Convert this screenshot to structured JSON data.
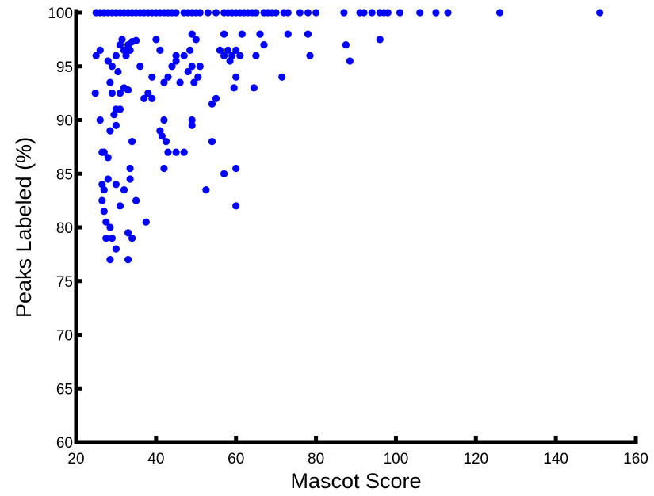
{
  "chart_data": {
    "type": "scatter",
    "xlabel": "Mascot Score",
    "ylabel": "Peaks Labeled (%)",
    "xlim": [
      20,
      160
    ],
    "ylim": [
      60,
      100
    ],
    "xticks": [
      20,
      40,
      60,
      80,
      100,
      120,
      140,
      160
    ],
    "yticks": [
      60,
      65,
      70,
      75,
      80,
      85,
      90,
      95,
      100
    ],
    "grid": false,
    "legend": "none",
    "marker_color": "#0000ff",
    "series": [
      {
        "points": [
          [
            25,
            100
          ],
          [
            26,
            100
          ],
          [
            27,
            100
          ],
          [
            28,
            100
          ],
          [
            29,
            100
          ],
          [
            30,
            100
          ],
          [
            31,
            100
          ],
          [
            32,
            100
          ],
          [
            33,
            100
          ],
          [
            34,
            100
          ],
          [
            35,
            100
          ],
          [
            36,
            100
          ],
          [
            37,
            100
          ],
          [
            38,
            100
          ],
          [
            39,
            100
          ],
          [
            40,
            100
          ],
          [
            41,
            100
          ],
          [
            42,
            100
          ],
          [
            43,
            100
          ],
          [
            44,
            100
          ],
          [
            45,
            100
          ],
          [
            47,
            100
          ],
          [
            48,
            100
          ],
          [
            49,
            100
          ],
          [
            50,
            100
          ],
          [
            51,
            100
          ],
          [
            53,
            100
          ],
          [
            55,
            100
          ],
          [
            57,
            100
          ],
          [
            58,
            100
          ],
          [
            59,
            100
          ],
          [
            60,
            100
          ],
          [
            61,
            100
          ],
          [
            62,
            100
          ],
          [
            63,
            100
          ],
          [
            64,
            100
          ],
          [
            65,
            100
          ],
          [
            67,
            100
          ],
          [
            68,
            100
          ],
          [
            69,
            100
          ],
          [
            70,
            100
          ],
          [
            72,
            100
          ],
          [
            73,
            100
          ],
          [
            76,
            100
          ],
          [
            78,
            100
          ],
          [
            80,
            100
          ],
          [
            87,
            100
          ],
          [
            91,
            100
          ],
          [
            92,
            100
          ],
          [
            94,
            100
          ],
          [
            96,
            100
          ],
          [
            97,
            100
          ],
          [
            98,
            100
          ],
          [
            101,
            100
          ],
          [
            106,
            100
          ],
          [
            110,
            100
          ],
          [
            113,
            100
          ],
          [
            126,
            100
          ],
          [
            151,
            100
          ],
          [
            26,
            96.5
          ],
          [
            25,
            96
          ],
          [
            24.8,
            92.5
          ],
          [
            26,
            90
          ],
          [
            28,
            95.5
          ],
          [
            28.5,
            93.5
          ],
          [
            29,
            95
          ],
          [
            30,
            96
          ],
          [
            30.5,
            94.5
          ],
          [
            31,
            97
          ],
          [
            31.5,
            97.5
          ],
          [
            32,
            96.5
          ],
          [
            32.5,
            96
          ],
          [
            33,
            97
          ],
          [
            33.5,
            96.5
          ],
          [
            34,
            97.3
          ],
          [
            35,
            97.4
          ],
          [
            36,
            95
          ],
          [
            29,
            92.5
          ],
          [
            30,
            91
          ],
          [
            31,
            92.5
          ],
          [
            32,
            93
          ],
          [
            33,
            92.8
          ],
          [
            37,
            92
          ],
          [
            38,
            92.5
          ],
          [
            39,
            92
          ],
          [
            39,
            94
          ],
          [
            40,
            97.5
          ],
          [
            41,
            96.5
          ],
          [
            42,
            93.5
          ],
          [
            43,
            94
          ],
          [
            44,
            95
          ],
          [
            45,
            95.5
          ],
          [
            45,
            96
          ],
          [
            46,
            93.5
          ],
          [
            47,
            96
          ],
          [
            48,
            94.5
          ],
          [
            48.5,
            96.5
          ],
          [
            49,
            98
          ],
          [
            49,
            95
          ],
          [
            49.5,
            93.5
          ],
          [
            50,
            97.5
          ],
          [
            50.5,
            94
          ],
          [
            51,
            95
          ],
          [
            55,
            92
          ],
          [
            54,
            91.5
          ],
          [
            56,
            96.5
          ],
          [
            57,
            98
          ],
          [
            57,
            96
          ],
          [
            58,
            96.5
          ],
          [
            58.5,
            95.5
          ],
          [
            59,
            96
          ],
          [
            60,
            94
          ],
          [
            60,
            96.5
          ],
          [
            61,
            96
          ],
          [
            61.5,
            98
          ],
          [
            59.5,
            93
          ],
          [
            64.5,
            93
          ],
          [
            65,
            96
          ],
          [
            66,
            98
          ],
          [
            67,
            97
          ],
          [
            71.5,
            94
          ],
          [
            73,
            98
          ],
          [
            78,
            98
          ],
          [
            78.5,
            96
          ],
          [
            87.5,
            97
          ],
          [
            88.5,
            95.5
          ],
          [
            96,
            97.5
          ],
          [
            29.5,
            90.5
          ],
          [
            30,
            89.5
          ],
          [
            31,
            91
          ],
          [
            28.5,
            89
          ],
          [
            26.5,
            87
          ],
          [
            27,
            87
          ],
          [
            28,
            86.5
          ],
          [
            34,
            88
          ],
          [
            41,
            89
          ],
          [
            42,
            90
          ],
          [
            42.5,
            88
          ],
          [
            41.5,
            88.5
          ],
          [
            43,
            87
          ],
          [
            45,
            87
          ],
          [
            47,
            87
          ],
          [
            49,
            89.5
          ],
          [
            49,
            90
          ],
          [
            54,
            88
          ],
          [
            26.5,
            84
          ],
          [
            27,
            83.5
          ],
          [
            26.5,
            82.5
          ],
          [
            27,
            81.5
          ],
          [
            28,
            84.5
          ],
          [
            30,
            84
          ],
          [
            31,
            82
          ],
          [
            32,
            83.5
          ],
          [
            33.5,
            84.5
          ],
          [
            33.5,
            85.5
          ],
          [
            35,
            82.5
          ],
          [
            42,
            85.5
          ],
          [
            52.5,
            83.5
          ],
          [
            57,
            85
          ],
          [
            60,
            85.5
          ],
          [
            60,
            82
          ],
          [
            27.5,
            80.5
          ],
          [
            28.5,
            80
          ],
          [
            27.5,
            79
          ],
          [
            29,
            79
          ],
          [
            30,
            78
          ],
          [
            33,
            79.5
          ],
          [
            34,
            79
          ],
          [
            37.5,
            80.5
          ],
          [
            28.5,
            77
          ],
          [
            33,
            77
          ]
        ]
      }
    ]
  }
}
